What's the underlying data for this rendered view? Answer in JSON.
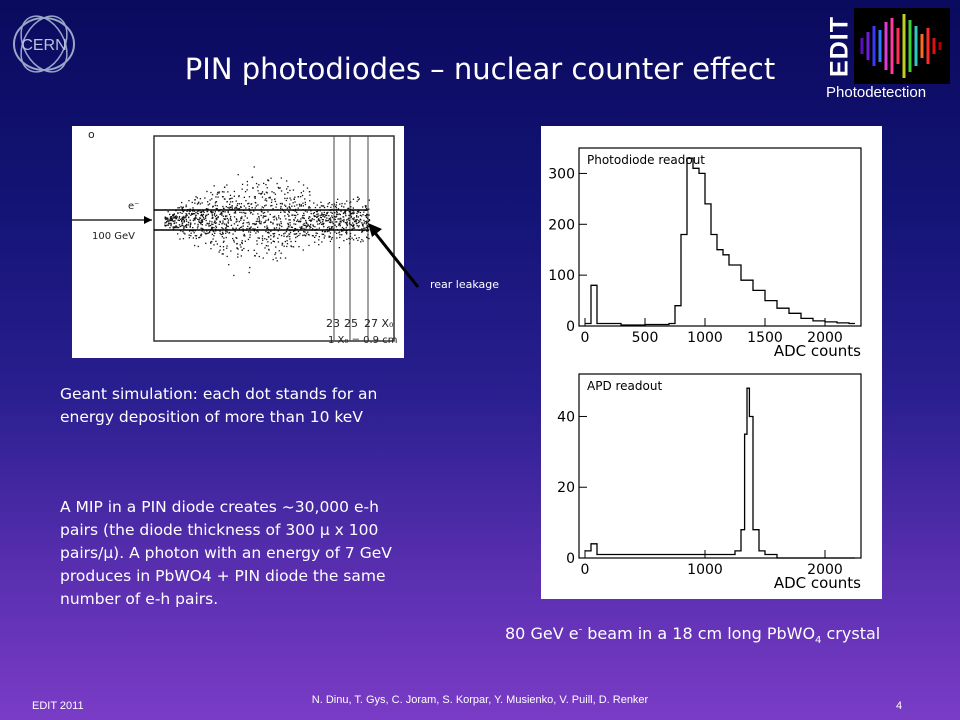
{
  "slide": {
    "title": "PIN photodiodes – nuclear counter effect",
    "logo_text": "EDIT",
    "logo_subtext": "Photodetection",
    "cern_text": "CERN"
  },
  "left_figure": {
    "beam_label": "e⁻",
    "energy_label": "100 GeV",
    "tick_labels": [
      "23",
      "25",
      "27 X₀"
    ],
    "scale_note": "1 X₀ = 0.9 cm",
    "marker": "o"
  },
  "annotation": {
    "rear_leakage": "rear leakage"
  },
  "text": {
    "geant": "Geant simulation: each dot stands for an energy deposition of more than 10 keV",
    "mip": "A MIP in a PIN diode creates ~30,000 e-h pairs (the diode thickness of 300 μ x 100 pairs/μ). A photon with an energy of 7 GeV produces in PbWO4 + PIN diode the same number of e-h pairs."
  },
  "caption": {
    "prefix": "80 GeV e",
    "sup": "-",
    "mid": " beam in a 18 cm long PbWO",
    "sub": "4",
    "suffix": " crystal"
  },
  "chart_data": [
    {
      "type": "line",
      "title": "Photodiode readout",
      "xlabel": "ADC counts",
      "x_ticks": [
        "0",
        "500",
        "1000",
        "1500",
        "2000"
      ],
      "y_ticks": [
        "0",
        "100",
        "200",
        "300"
      ],
      "xlim": [
        -50,
        2300
      ],
      "ylim": [
        0,
        350
      ],
      "x": [
        0,
        50,
        100,
        300,
        500,
        700,
        750,
        800,
        850,
        900,
        950,
        1000,
        1050,
        1100,
        1150,
        1200,
        1300,
        1400,
        1500,
        1600,
        1700,
        1800,
        1900,
        2000,
        2100,
        2200,
        2250
      ],
      "y": [
        5,
        80,
        5,
        2,
        3,
        5,
        40,
        180,
        330,
        310,
        300,
        240,
        180,
        150,
        140,
        120,
        90,
        70,
        50,
        35,
        25,
        15,
        10,
        8,
        6,
        5,
        5
      ]
    },
    {
      "type": "line",
      "title": "APD readout",
      "xlabel": "ADC counts",
      "x_ticks": [
        "0",
        "1000",
        "2000"
      ],
      "y_ticks": [
        "0",
        "20",
        "40"
      ],
      "xlim": [
        -50,
        2300
      ],
      "ylim": [
        0,
        52
      ],
      "x": [
        0,
        50,
        100,
        500,
        1000,
        1200,
        1250,
        1300,
        1330,
        1350,
        1370,
        1400,
        1450,
        1500,
        1600,
        2000,
        2250
      ],
      "y": [
        2,
        4,
        1,
        1,
        1,
        1,
        2,
        8,
        35,
        48,
        40,
        8,
        2,
        1,
        0,
        0,
        0
      ]
    }
  ],
  "footer": {
    "left": "EDIT 2011",
    "center": "N. Dinu, T. Gys, C. Joram, S. Korpar, Y. Musienko, V. Puill, D. Renker",
    "page": "4"
  }
}
